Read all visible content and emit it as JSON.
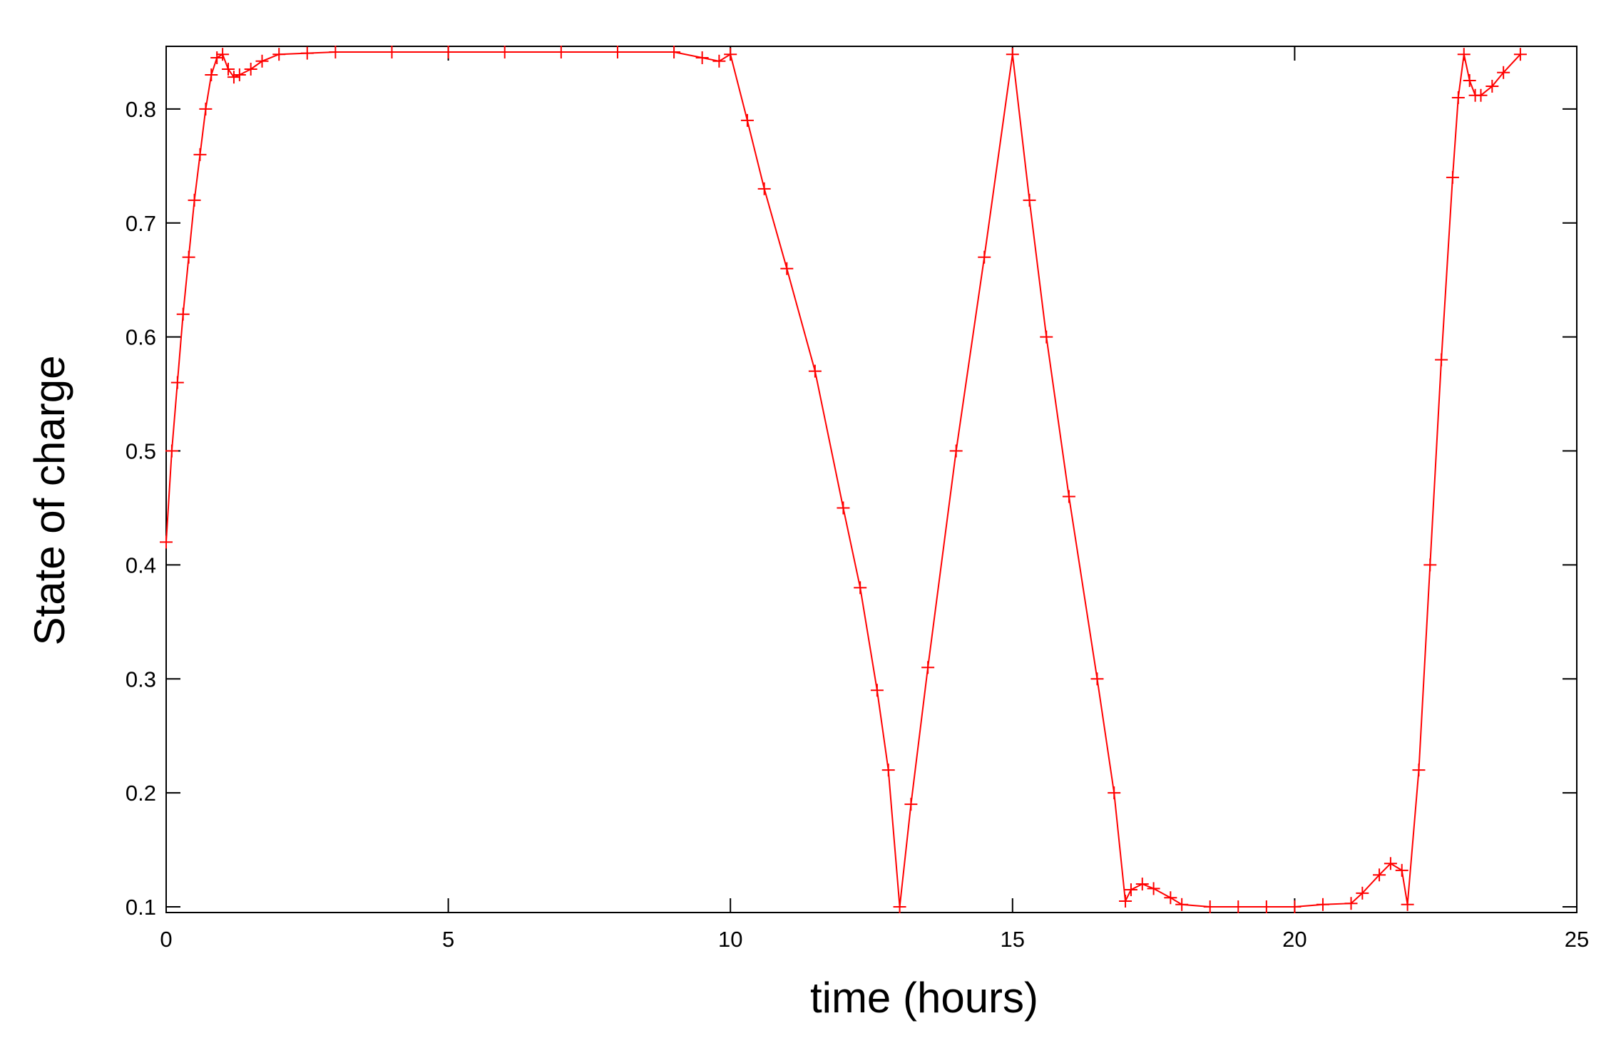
{
  "chart_data": {
    "type": "line",
    "title": "",
    "xlabel": "time (hours)",
    "ylabel": "State of charge",
    "xlim": [
      0,
      25
    ],
    "ylim": [
      0.095,
      0.855
    ],
    "xticks": [
      0,
      5,
      10,
      15,
      20,
      25
    ],
    "yticks": [
      0.1,
      0.2,
      0.3,
      0.4,
      0.5,
      0.6,
      0.7,
      0.8
    ],
    "xtick_labels": [
      "0",
      "5",
      "10",
      "15",
      "20",
      "25"
    ],
    "ytick_labels": [
      "0.1",
      "0.2",
      "0.3",
      "0.4",
      "0.5",
      "0.6",
      "0.7",
      "0.8"
    ],
    "grid": false,
    "legend": "none",
    "marker": "plus",
    "line_color": "#ff0000",
    "series": [
      {
        "x": [
          0,
          0.1,
          0.2,
          0.3,
          0.4,
          0.5,
          0.6,
          0.7,
          0.8,
          0.9,
          1.0,
          1.1,
          1.2,
          1.3,
          1.5,
          1.7,
          2.0,
          2.5,
          3.0,
          4.0,
          5.0,
          6.0,
          7.0,
          8.0,
          9.0,
          9.5,
          9.8,
          10.0,
          10.3,
          10.6,
          11.0,
          11.5,
          12.0,
          12.3,
          12.6,
          12.8,
          13.0,
          13.2,
          13.5,
          14.0,
          14.5,
          15.0,
          15.3,
          15.6,
          16.0,
          16.5,
          16.8,
          17.0,
          17.1,
          17.3,
          17.5,
          17.8,
          18.0,
          18.5,
          19.0,
          19.5,
          20.0,
          20.5,
          21.0,
          21.2,
          21.5,
          21.7,
          21.9,
          22.0,
          22.2,
          22.4,
          22.6,
          22.8,
          22.9,
          23.0,
          23.1,
          23.2,
          23.3,
          23.5,
          23.7,
          24.0
        ],
        "y": [
          0.42,
          0.5,
          0.56,
          0.62,
          0.67,
          0.72,
          0.76,
          0.8,
          0.83,
          0.845,
          0.848,
          0.835,
          0.828,
          0.83,
          0.835,
          0.842,
          0.848,
          0.849,
          0.85,
          0.85,
          0.85,
          0.85,
          0.85,
          0.85,
          0.85,
          0.845,
          0.842,
          0.848,
          0.79,
          0.73,
          0.66,
          0.57,
          0.45,
          0.38,
          0.29,
          0.22,
          0.1,
          0.19,
          0.31,
          0.5,
          0.67,
          0.848,
          0.72,
          0.6,
          0.46,
          0.3,
          0.2,
          0.105,
          0.115,
          0.12,
          0.116,
          0.108,
          0.102,
          0.1,
          0.1,
          0.1,
          0.1,
          0.102,
          0.103,
          0.112,
          0.128,
          0.138,
          0.132,
          0.102,
          0.22,
          0.4,
          0.58,
          0.74,
          0.81,
          0.848,
          0.825,
          0.812,
          0.812,
          0.82,
          0.832,
          0.848
        ]
      }
    ]
  }
}
